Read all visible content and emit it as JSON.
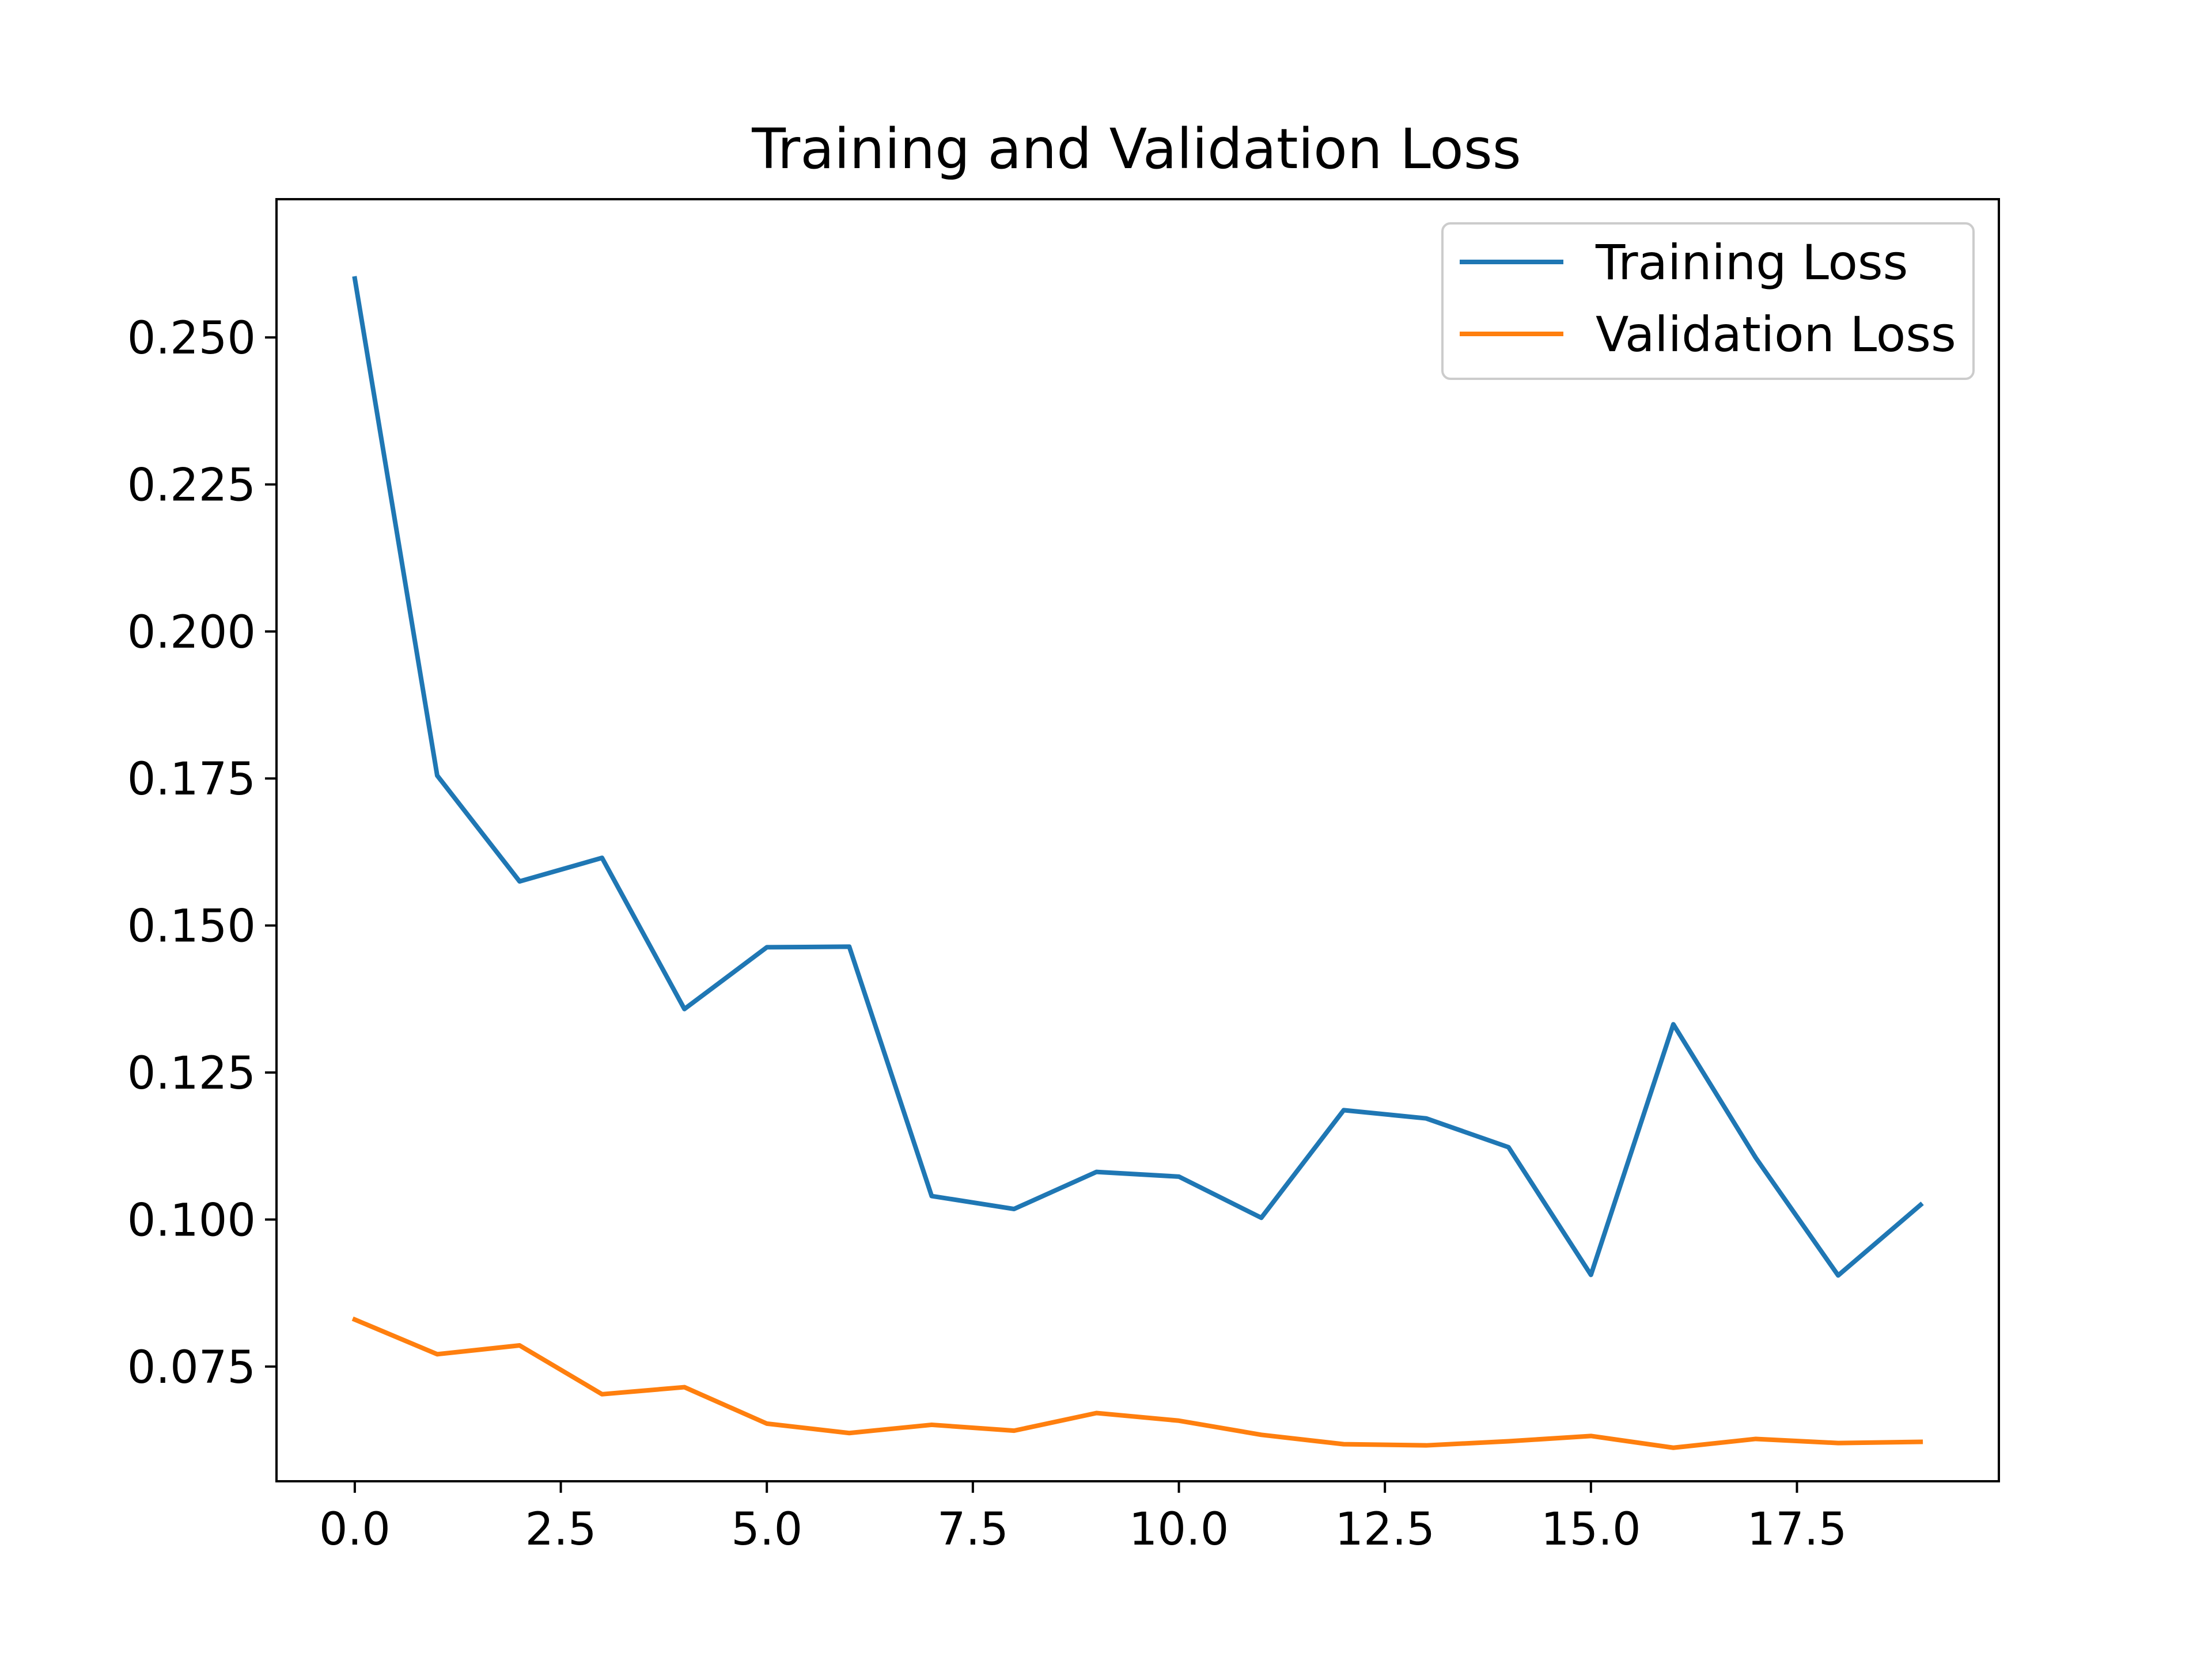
{
  "chart_data": {
    "type": "line",
    "title": "Training and Validation Loss",
    "xlabel": "",
    "ylabel": "",
    "xlim": [
      -0.95,
      19.95
    ],
    "ylim": [
      0.0555,
      0.2735
    ],
    "x": [
      0,
      1,
      2,
      3,
      4,
      5,
      6,
      7,
      8,
      9,
      10,
      11,
      12,
      13,
      14,
      15,
      16,
      17,
      18,
      19
    ],
    "xticks": [
      0.0,
      2.5,
      5.0,
      7.5,
      10.0,
      12.5,
      15.0,
      17.5
    ],
    "xtick_labels": [
      "0.0",
      "2.5",
      "5.0",
      "7.5",
      "10.0",
      "12.5",
      "15.0",
      "17.5"
    ],
    "yticks": [
      0.075,
      0.1,
      0.125,
      0.15,
      0.175,
      0.2,
      0.225,
      0.25
    ],
    "ytick_labels": [
      "0.075",
      "0.100",
      "0.125",
      "0.150",
      "0.175",
      "0.200",
      "0.225",
      "0.250"
    ],
    "grid": false,
    "legend_position": "top-right",
    "series": [
      {
        "name": "Training Loss",
        "color": "#1f77b4",
        "values": [
          0.26,
          0.1755,
          0.1575,
          0.1615,
          0.1358,
          0.1463,
          0.1464,
          0.104,
          0.1018,
          0.1081,
          0.1073,
          0.1003,
          0.1186,
          0.1172,
          0.1123,
          0.0906,
          0.1332,
          0.1105,
          0.0905,
          0.1025
        ]
      },
      {
        "name": "Validation Loss",
        "color": "#ff7f0e",
        "values": [
          0.083,
          0.0771,
          0.0786,
          0.0703,
          0.0715,
          0.0653,
          0.0637,
          0.0651,
          0.0641,
          0.0671,
          0.0658,
          0.0634,
          0.0618,
          0.0616,
          0.0623,
          0.0632,
          0.0612,
          0.0627,
          0.062,
          0.0622
        ]
      }
    ]
  }
}
